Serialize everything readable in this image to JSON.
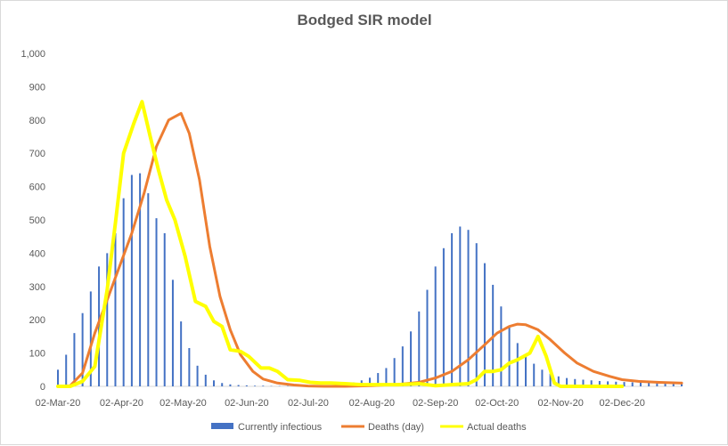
{
  "chart_data": {
    "type": "line",
    "title": "Bodged SIR model",
    "xlabel": "",
    "ylabel": "",
    "ylim": [
      0,
      1000
    ],
    "y_ticks": [
      "0",
      "100",
      "200",
      "300",
      "400",
      "500",
      "600",
      "700",
      "800",
      "900",
      "1,000"
    ],
    "x_ticks": [
      "02-Mar-20",
      "02-Apr-20",
      "02-May-20",
      "02-Jun-20",
      "02-Jul-20",
      "02-Aug-20",
      "02-Sep-20",
      "02-Oct-20",
      "02-Nov-20",
      "02-Dec-20"
    ],
    "grid": false,
    "legend_position": "bottom",
    "colors": {
      "Currently infectious": "#4472c4",
      "Deaths (day)": "#ed7d31",
      "Actual deaths": "#ffff00"
    },
    "series": [
      {
        "name": "Currently infectious",
        "type": "bar",
        "x": [
          "02-Mar-20",
          "06-Mar-20",
          "10-Mar-20",
          "14-Mar-20",
          "18-Mar-20",
          "22-Mar-20",
          "26-Mar-20",
          "30-Mar-20",
          "03-Apr-20",
          "07-Apr-20",
          "11-Apr-20",
          "15-Apr-20",
          "19-Apr-20",
          "23-Apr-20",
          "27-Apr-20",
          "01-May-20",
          "05-May-20",
          "09-May-20",
          "13-May-20",
          "17-May-20",
          "21-May-20",
          "25-May-20",
          "29-May-20",
          "02-Jun-20",
          "06-Jun-20",
          "10-Jun-20",
          "14-Jun-20",
          "18-Jun-20",
          "22-Jun-20",
          "26-Jun-20",
          "30-Jun-20",
          "04-Jul-20",
          "08-Jul-20",
          "12-Jul-20",
          "16-Jul-20",
          "20-Jul-20",
          "24-Jul-20",
          "28-Jul-20",
          "01-Aug-20",
          "05-Aug-20",
          "09-Aug-20",
          "13-Aug-20",
          "17-Aug-20",
          "21-Aug-20",
          "25-Aug-20",
          "29-Aug-20",
          "02-Sep-20",
          "06-Sep-20",
          "10-Sep-20",
          "14-Sep-20",
          "18-Sep-20",
          "22-Sep-20",
          "26-Sep-20",
          "30-Sep-20",
          "04-Oct-20",
          "08-Oct-20",
          "12-Oct-20",
          "16-Oct-20",
          "20-Oct-20",
          "24-Oct-20",
          "28-Oct-20",
          "01-Nov-20",
          "05-Nov-20",
          "09-Nov-20",
          "13-Nov-20",
          "17-Nov-20",
          "21-Nov-20",
          "25-Nov-20",
          "29-Nov-20",
          "03-Dec-20",
          "07-Dec-20",
          "11-Dec-20",
          "15-Dec-20",
          "19-Dec-20",
          "23-Dec-20",
          "27-Dec-20",
          "31-Dec-20"
        ],
        "values": [
          50,
          95,
          160,
          220,
          285,
          360,
          400,
          460,
          565,
          635,
          640,
          580,
          505,
          460,
          320,
          195,
          115,
          62,
          35,
          18,
          10,
          6,
          4,
          3,
          2,
          2,
          1,
          1,
          1,
          1,
          1,
          1,
          2,
          3,
          5,
          8,
          12,
          18,
          26,
          40,
          55,
          85,
          120,
          165,
          225,
          290,
          360,
          415,
          460,
          480,
          470,
          430,
          370,
          305,
          240,
          180,
          130,
          95,
          68,
          50,
          38,
          30,
          25,
          22,
          20,
          18,
          16,
          15,
          14,
          13,
          12,
          12,
          11,
          11,
          10,
          10,
          10
        ]
      },
      {
        "name": "Deaths (day)",
        "type": "line",
        "x": [
          "02-Mar-20",
          "08-Mar-20",
          "14-Mar-20",
          "20-Mar-20",
          "26-Mar-20",
          "01-Apr-20",
          "07-Apr-20",
          "13-Apr-20",
          "19-Apr-20",
          "25-Apr-20",
          "01-May-20",
          "05-May-20",
          "10-May-20",
          "15-May-20",
          "20-May-20",
          "25-May-20",
          "30-May-20",
          "05-Jun-20",
          "10-Jun-20",
          "17-Jun-20",
          "25-Jun-20",
          "02-Jul-20",
          "10-Jul-20",
          "20-Jul-20",
          "02-Aug-20",
          "15-Aug-20",
          "25-Aug-20",
          "02-Sep-20",
          "10-Sep-20",
          "18-Sep-20",
          "26-Sep-20",
          "02-Oct-20",
          "08-Oct-20",
          "12-Oct-20",
          "16-Oct-20",
          "22-Oct-20",
          "28-Oct-20",
          "04-Nov-20",
          "10-Nov-20",
          "18-Nov-20",
          "26-Nov-20",
          "02-Dec-20",
          "10-Dec-20",
          "20-Dec-20",
          "31-Dec-20"
        ],
        "values": [
          0,
          2,
          40,
          160,
          260,
          360,
          460,
          580,
          720,
          800,
          820,
          760,
          620,
          420,
          270,
          170,
          95,
          45,
          22,
          10,
          4,
          1,
          0,
          0,
          2,
          6,
          12,
          25,
          45,
          80,
          125,
          160,
          180,
          187,
          185,
          170,
          140,
          100,
          70,
          45,
          30,
          20,
          15,
          12,
          10
        ]
      },
      {
        "name": "Actual deaths",
        "type": "line",
        "x": [
          "02-Mar-20",
          "08-Mar-20",
          "14-Mar-20",
          "20-Mar-20",
          "26-Mar-20",
          "30-Mar-20",
          "03-Apr-20",
          "08-Apr-20",
          "12-Apr-20",
          "16-Apr-20",
          "20-Apr-20",
          "24-Apr-20",
          "28-Apr-20",
          "03-May-20",
          "08-May-20",
          "13-May-20",
          "17-May-20",
          "21-May-20",
          "25-May-20",
          "30-May-20",
          "03-Jun-20",
          "09-Jun-20",
          "13-Jun-20",
          "17-Jun-20",
          "22-Jun-20",
          "28-Jun-20",
          "03-Jul-20",
          "08-Jul-20",
          "13-Jul-20",
          "20-Jul-20",
          "28-Jul-20",
          "05-Aug-20",
          "15-Aug-20",
          "25-Aug-20",
          "02-Sep-20",
          "10-Sep-20",
          "18-Sep-20",
          "22-Sep-20",
          "26-Sep-20",
          "30-Sep-20",
          "04-Oct-20",
          "08-Oct-20",
          "12-Oct-20",
          "18-Oct-20",
          "22-Oct-20",
          "26-Oct-20",
          "30-Oct-20",
          "02-Nov-20",
          "06-Nov-20",
          "14-Nov-20",
          "22-Nov-20",
          "02-Dec-20"
        ],
        "values": [
          0,
          0,
          15,
          60,
          290,
          490,
          700,
          790,
          855,
          750,
          650,
          560,
          500,
          390,
          255,
          240,
          195,
          180,
          110,
          105,
          90,
          55,
          55,
          45,
          20,
          18,
          12,
          10,
          10,
          8,
          5,
          5,
          5,
          8,
          2,
          5,
          8,
          20,
          45,
          45,
          50,
          70,
          80,
          100,
          150,
          90,
          10,
          0,
          0,
          0,
          0,
          0
        ]
      }
    ]
  }
}
